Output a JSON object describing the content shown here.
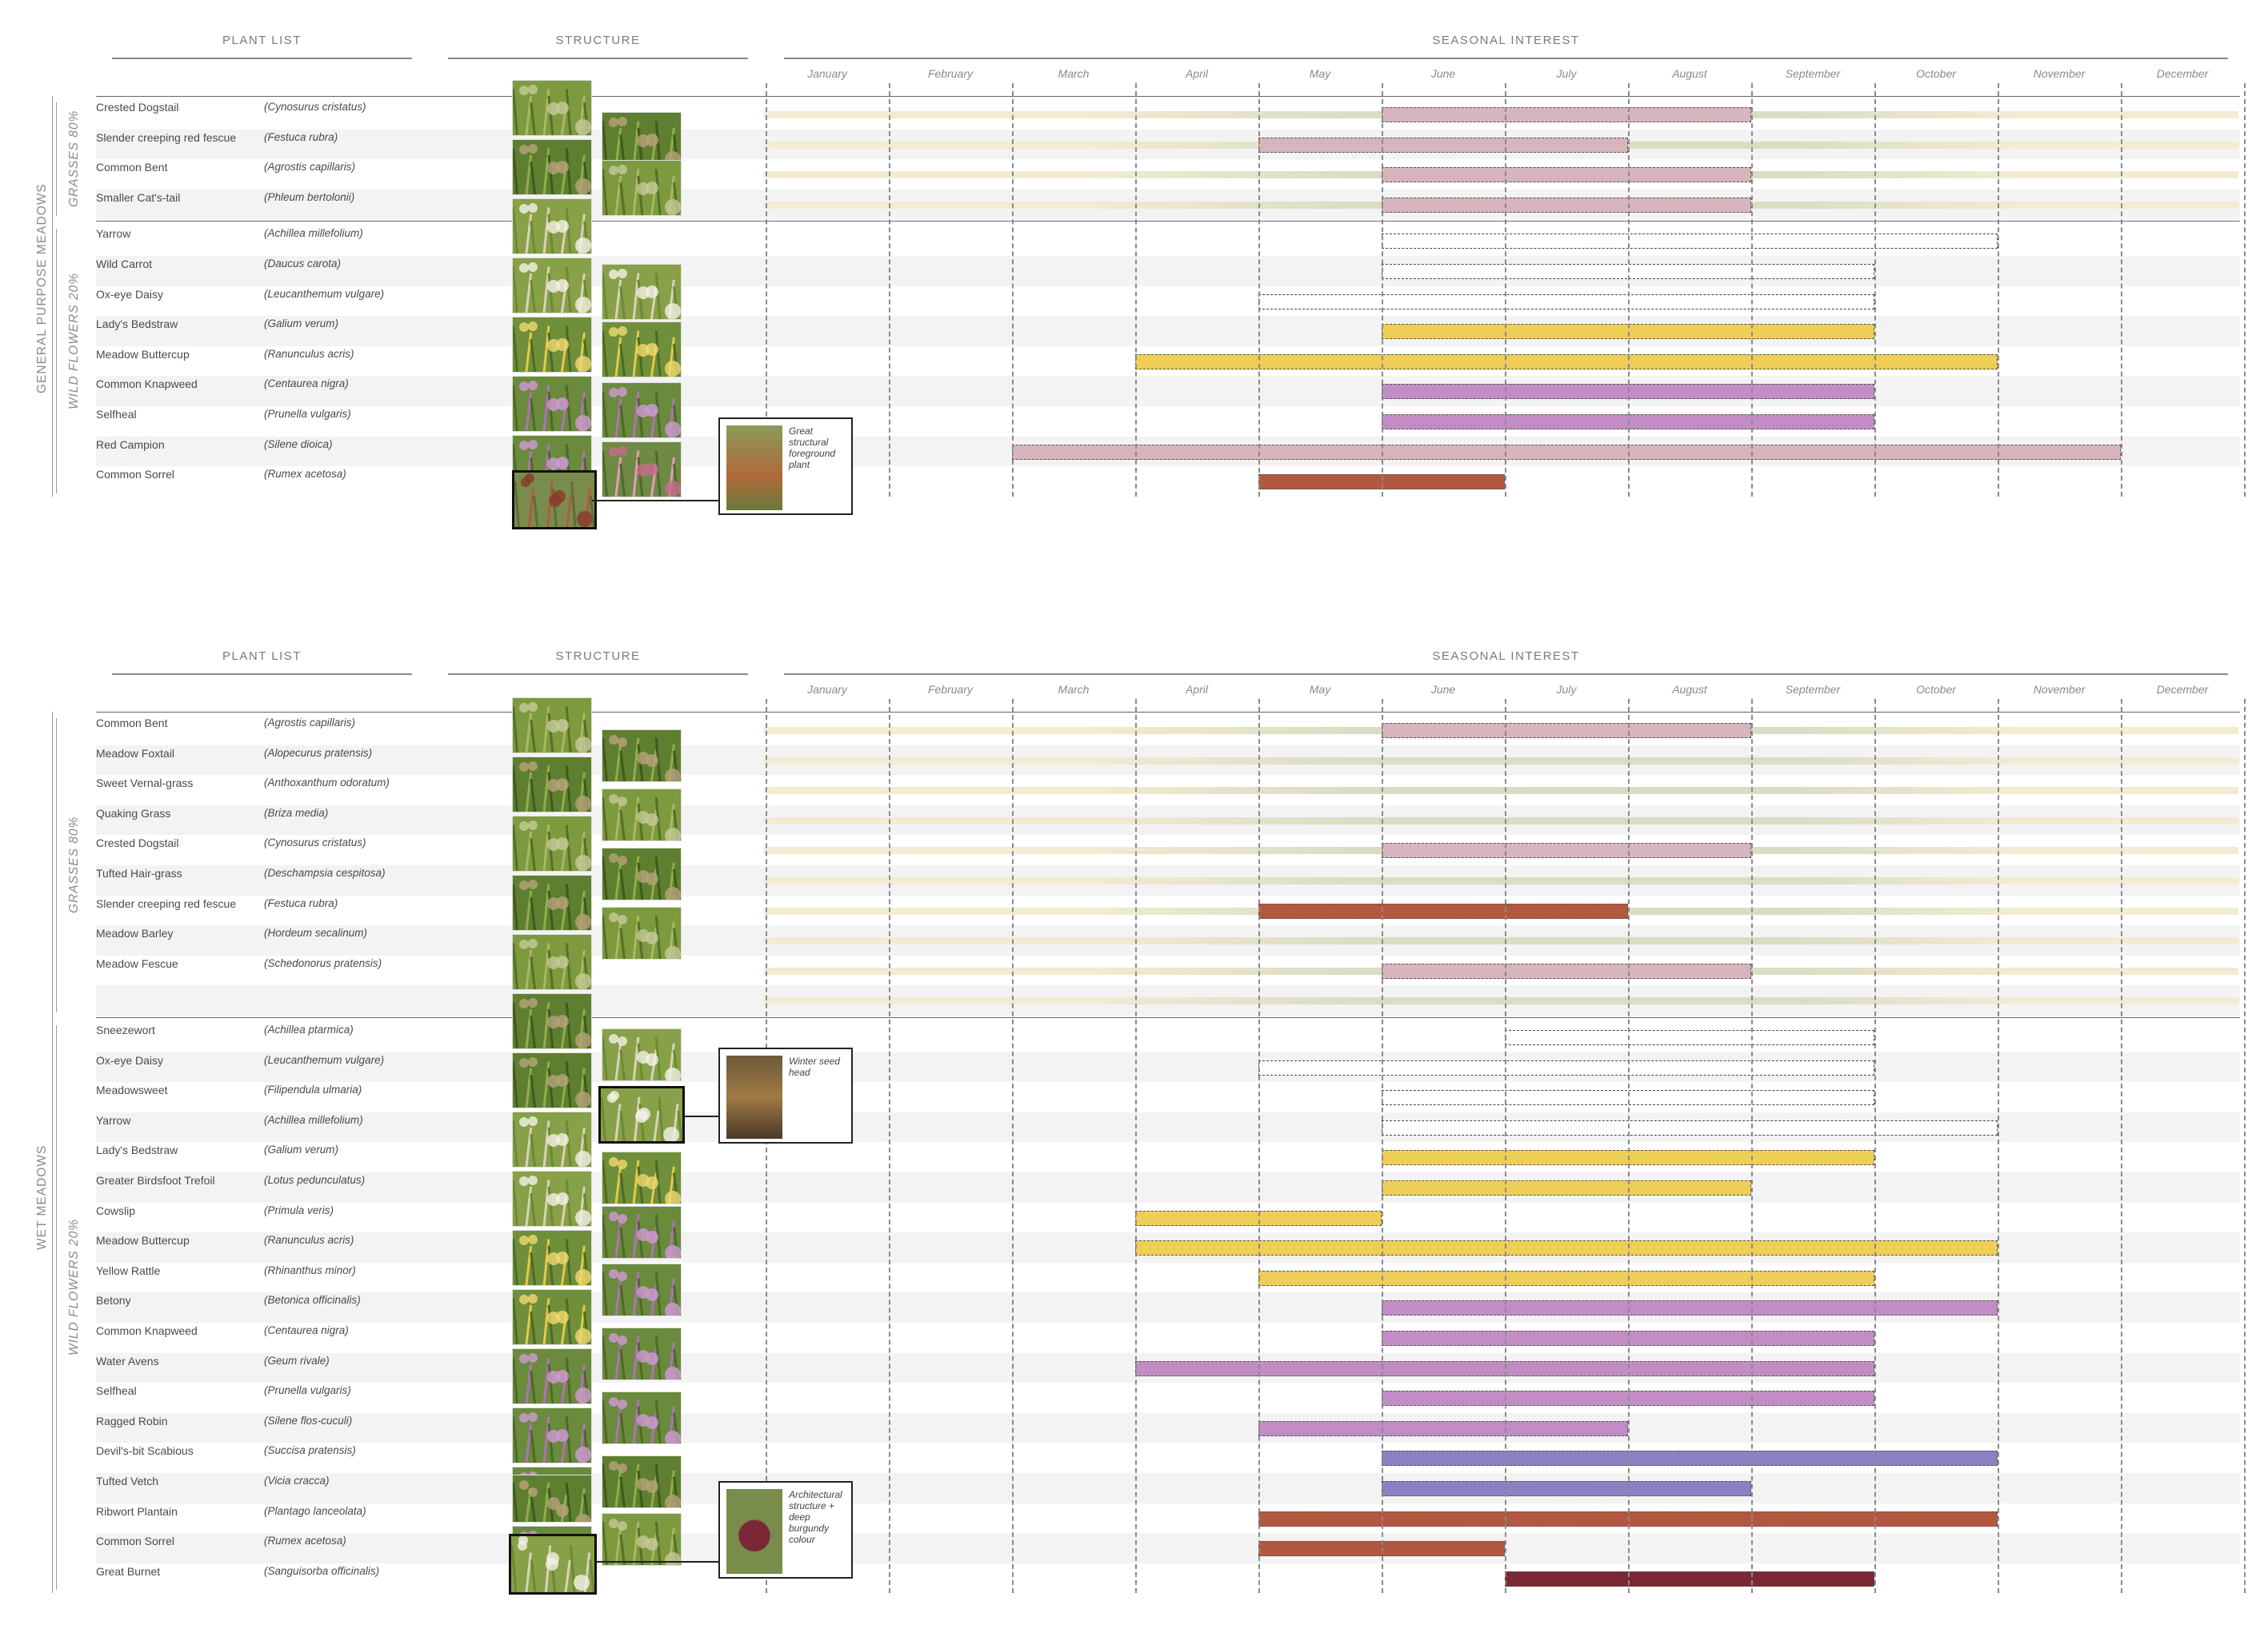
{
  "colors": {
    "grass_band": "#f1ecd2",
    "grass_band_dark": "#dcdcc4",
    "pink": "#d7b5bd",
    "yellow": "#efce58",
    "purple": "#c18dc4",
    "rust": "#b35840",
    "lavender": "#8a82c4",
    "maroon": "#7b2836",
    "white": "#ffffff",
    "row_alt": "#f3f3f3"
  },
  "headers": {
    "plant_list": "PLANT LIST",
    "structure": "STRUCTURE",
    "seasonal_interest": "SEASONAL INTEREST"
  },
  "months": [
    "January",
    "February",
    "March",
    "April",
    "May",
    "June",
    "July",
    "August",
    "September",
    "October",
    "November",
    "December"
  ],
  "chart_data": [
    {
      "type": "table",
      "section": "GENERAL PURPOSE MEADOWS",
      "groups": [
        {
          "label": "GRASSES 80%",
          "plants": [
            {
              "common": "Crested Dogstail",
              "latin": "(Cynosurus cristatus)",
              "base": true,
              "bars": [
                {
                  "start": 6,
                  "end": 9,
                  "color": "pink"
                }
              ]
            },
            {
              "common": "Slender creeping red fescue",
              "latin": "(Festuca rubra)",
              "base": true,
              "bars": [
                {
                  "start": 5,
                  "end": 8,
                  "color": "pink"
                }
              ]
            },
            {
              "common": "Common Bent",
              "latin": "(Agrostis capillaris)",
              "base": true,
              "bars": [
                {
                  "start": 6,
                  "end": 9,
                  "color": "pink"
                }
              ]
            },
            {
              "common": "Smaller Cat's-tail",
              "latin": "(Phleum bertolonii)",
              "base": true,
              "bars": [
                {
                  "start": 6,
                  "end": 9,
                  "color": "pink"
                }
              ]
            }
          ]
        },
        {
          "label": "WILD FLOWERS 20%",
          "plants": [
            {
              "common": "Yarrow",
              "latin": "(Achillea millefolium)",
              "bars": [
                {
                  "start": 6,
                  "end": 11,
                  "color": "white"
                }
              ]
            },
            {
              "common": "Wild Carrot",
              "latin": "(Daucus carota)",
              "bars": [
                {
                  "start": 6,
                  "end": 10,
                  "color": "white"
                }
              ]
            },
            {
              "common": "Ox-eye Daisy",
              "latin": "(Leucanthemum vulgare)",
              "bars": [
                {
                  "start": 5,
                  "end": 10,
                  "color": "white"
                }
              ]
            },
            {
              "common": "Lady's Bedstraw",
              "latin": "(Galium verum)",
              "bars": [
                {
                  "start": 6,
                  "end": 10,
                  "color": "yellow"
                }
              ]
            },
            {
              "common": "Meadow Buttercup",
              "latin": "(Ranunculus acris)",
              "bars": [
                {
                  "start": 4,
                  "end": 11,
                  "color": "yellow"
                }
              ]
            },
            {
              "common": "Common Knapweed",
              "latin": "(Centaurea nigra)",
              "bars": [
                {
                  "start": 6,
                  "end": 10,
                  "color": "purple"
                }
              ]
            },
            {
              "common": "Selfheal",
              "latin": "(Prunella vulgaris)",
              "bars": [
                {
                  "start": 6,
                  "end": 10,
                  "color": "purple"
                }
              ]
            },
            {
              "common": "Red Campion",
              "latin": "(Silene dioica)",
              "bars": [
                {
                  "start": 3,
                  "end": 12,
                  "color": "pink"
                }
              ]
            },
            {
              "common": "Common Sorrel",
              "latin": "(Rumex acetosa)",
              "bars": [
                {
                  "start": 5,
                  "end": 7,
                  "color": "rust"
                }
              ]
            }
          ]
        }
      ],
      "note": "Great structural foreground plant"
    },
    {
      "type": "table",
      "section": "WET MEADOWS",
      "groups": [
        {
          "label": "GRASSES 80%",
          "plants": [
            {
              "common": "Common Bent",
              "latin": "(Agrostis capillaris)",
              "base": true,
              "bars": [
                {
                  "start": 6,
                  "end": 9,
                  "color": "pink"
                }
              ]
            },
            {
              "common": "Meadow Foxtail",
              "latin": "(Alopecurus pratensis)",
              "base": true,
              "bars": []
            },
            {
              "common": "Sweet Vernal-grass",
              "latin": "(Anthoxanthum odoratum)",
              "base": true,
              "bars": []
            },
            {
              "common": "Quaking Grass",
              "latin": "(Briza media)",
              "base": true,
              "bars": []
            },
            {
              "common": "Crested Dogstail",
              "latin": "(Cynosurus cristatus)",
              "base": true,
              "bars": [
                {
                  "start": 6,
                  "end": 9,
                  "color": "pink"
                }
              ]
            },
            {
              "common": "Tufted Hair-grass",
              "latin": "(Deschampsia cespitosa)",
              "base": true,
              "bars": []
            },
            {
              "common": "Slender creeping red fescue",
              "latin": "(Festuca rubra)",
              "base": true,
              "bars": [
                {
                  "start": 5,
                  "end": 8,
                  "color": "rust"
                }
              ]
            },
            {
              "common": "Meadow Barley",
              "latin": "(Hordeum secalinum)",
              "base": true,
              "bars": []
            },
            {
              "common": "Meadow Fescue",
              "latin": "(Schedonorus pratensis)",
              "base": true,
              "bars": [
                {
                  "start": 6,
                  "end": 9,
                  "color": "pink"
                }
              ]
            },
            {
              "common": "",
              "latin": "",
              "base": true,
              "bars": []
            }
          ]
        },
        {
          "label": "WILD FLOWERS 20%",
          "plants": [
            {
              "common": "Sneezewort",
              "latin": "(Achillea ptarmica)",
              "bars": [
                {
                  "start": 7,
                  "end": 10,
                  "color": "white"
                }
              ]
            },
            {
              "common": "Ox-eye Daisy",
              "latin": "(Leucanthemum vulgare)",
              "bars": [
                {
                  "start": 5,
                  "end": 10,
                  "color": "white"
                }
              ]
            },
            {
              "common": "Meadowsweet",
              "latin": "(Filipendula ulmaria)",
              "bars": [
                {
                  "start": 6,
                  "end": 10,
                  "color": "white"
                }
              ]
            },
            {
              "common": "Yarrow",
              "latin": "(Achillea millefolium)",
              "bars": [
                {
                  "start": 6,
                  "end": 11,
                  "color": "white"
                }
              ]
            },
            {
              "common": "Lady's Bedstraw",
              "latin": "(Galium verum)",
              "bars": [
                {
                  "start": 6,
                  "end": 10,
                  "color": "yellow"
                }
              ]
            },
            {
              "common": "Greater Birdsfoot Trefoil",
              "latin": "(Lotus pedunculatus)",
              "bars": [
                {
                  "start": 6,
                  "end": 9,
                  "color": "yellow"
                }
              ]
            },
            {
              "common": "Cowslip",
              "latin": "(Primula veris)",
              "bars": [
                {
                  "start": 4,
                  "end": 6,
                  "color": "yellow"
                }
              ]
            },
            {
              "common": "Meadow Buttercup",
              "latin": "(Ranunculus acris)",
              "bars": [
                {
                  "start": 4,
                  "end": 11,
                  "color": "yellow"
                }
              ]
            },
            {
              "common": "Yellow Rattle",
              "latin": "(Rhinanthus minor)",
              "bars": [
                {
                  "start": 5,
                  "end": 10,
                  "color": "yellow"
                }
              ]
            },
            {
              "common": "Betony",
              "latin": "(Betonica officinalis)",
              "bars": [
                {
                  "start": 6,
                  "end": 11,
                  "color": "purple"
                }
              ]
            },
            {
              "common": "Common Knapweed",
              "latin": "(Centaurea nigra)",
              "bars": [
                {
                  "start": 6,
                  "end": 10,
                  "color": "purple"
                }
              ]
            },
            {
              "common": "Water Avens",
              "latin": "(Geum rivale)",
              "bars": [
                {
                  "start": 4,
                  "end": 10,
                  "color": "purple"
                }
              ]
            },
            {
              "common": "Selfheal",
              "latin": "(Prunella vulgaris)",
              "bars": [
                {
                  "start": 6,
                  "end": 10,
                  "color": "purple"
                }
              ]
            },
            {
              "common": "Ragged Robin",
              "latin": "(Silene flos-cuculi)",
              "bars": [
                {
                  "start": 5,
                  "end": 8,
                  "color": "purple"
                }
              ]
            },
            {
              "common": "Devil's-bit Scabious",
              "latin": "(Succisa pratensis)",
              "bars": [
                {
                  "start": 6,
                  "end": 11,
                  "color": "lavender"
                }
              ]
            },
            {
              "common": "Tufted Vetch",
              "latin": "(Vicia cracca)",
              "bars": [
                {
                  "start": 6,
                  "end": 9,
                  "color": "lavender"
                }
              ]
            },
            {
              "common": "Ribwort Plantain",
              "latin": "(Plantago lanceolata)",
              "bars": [
                {
                  "start": 5,
                  "end": 11,
                  "color": "rust"
                }
              ]
            },
            {
              "common": "Common Sorrel",
              "latin": "(Rumex acetosa)",
              "bars": [
                {
                  "start": 5,
                  "end": 7,
                  "color": "rust"
                }
              ]
            },
            {
              "common": "Great Burnet",
              "latin": "(Sanguisorba officinalis)",
              "bars": [
                {
                  "start": 7,
                  "end": 10,
                  "color": "maroon"
                }
              ]
            }
          ]
        }
      ],
      "notes": [
        "Winter seed head",
        "Architectural structure + deep burgundy colour"
      ]
    }
  ]
}
